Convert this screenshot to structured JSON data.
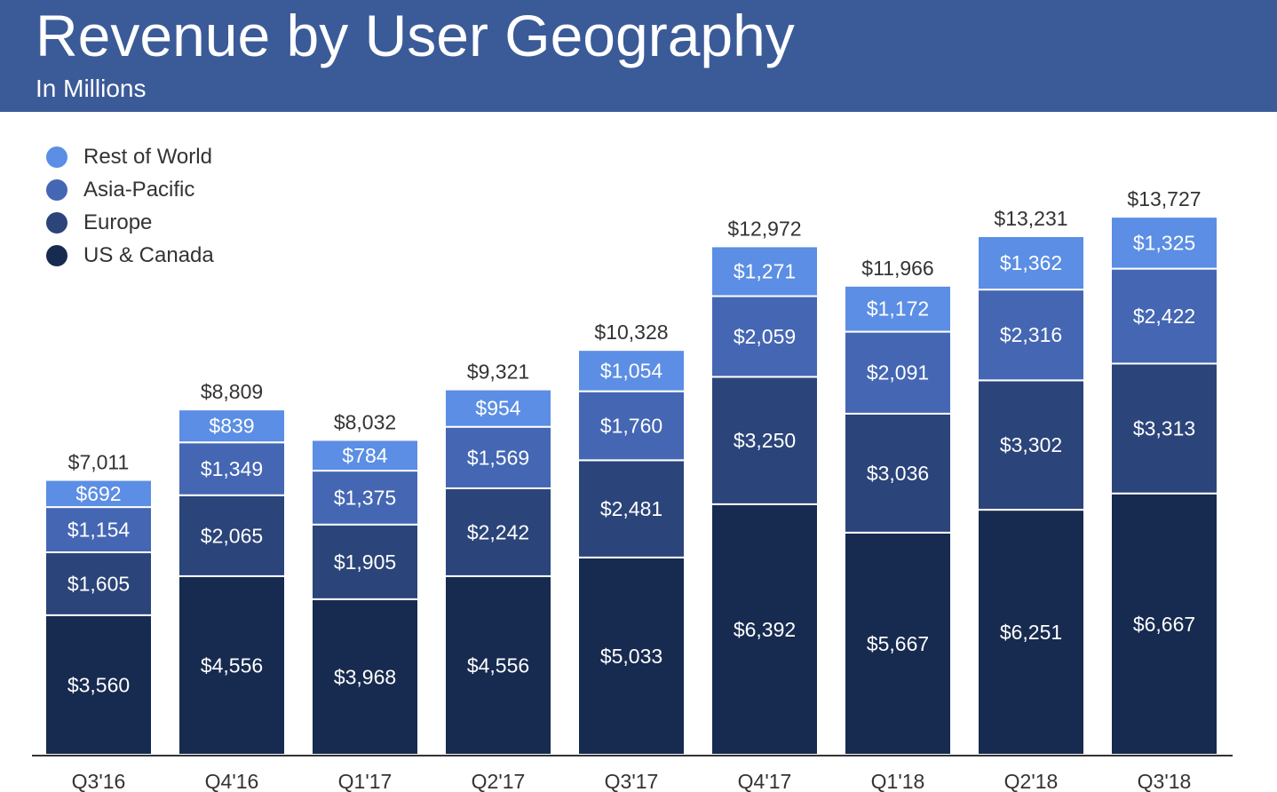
{
  "header": {
    "title": "Revenue by User Geography",
    "subtitle": "In Millions",
    "background_color": "#3b5a98"
  },
  "legend": {
    "items": [
      {
        "label": "Rest of World",
        "color": "#5b8ee4"
      },
      {
        "label": "Asia-Pacific",
        "color": "#4466b3"
      },
      {
        "label": "Europe",
        "color": "#2b4479"
      },
      {
        "label": "US & Canada",
        "color": "#172a4f"
      }
    ]
  },
  "chart_data": {
    "type": "bar",
    "stacked": true,
    "categories": [
      "Q3'16",
      "Q4'16",
      "Q1'17",
      "Q2'17",
      "Q3'17",
      "Q4'17",
      "Q1'18",
      "Q2'18",
      "Q3'18"
    ],
    "series": [
      {
        "name": "US & Canada",
        "color": "#172a4f",
        "values": [
          3560,
          4556,
          3968,
          4556,
          5033,
          6392,
          5667,
          6251,
          6667
        ],
        "labels": [
          "$3,560",
          "$4,556",
          "$3,968",
          "$4,556",
          "$5,033",
          "$6,392",
          "$5,667",
          "$6,251",
          "$6,667"
        ]
      },
      {
        "name": "Europe",
        "color": "#2b4479",
        "values": [
          1605,
          2065,
          1905,
          2242,
          2481,
          3250,
          3036,
          3302,
          3313
        ],
        "labels": [
          "$1,605",
          "$2,065",
          "$1,905",
          "$2,242",
          "$2,481",
          "$3,250",
          "$3,036",
          "$3,302",
          "$3,313"
        ]
      },
      {
        "name": "Asia-Pacific",
        "color": "#4466b3",
        "values": [
          1154,
          1349,
          1375,
          1569,
          1760,
          2059,
          2091,
          2316,
          2422
        ],
        "labels": [
          "$1,154",
          "$1,349",
          "$1,375",
          "$1,569",
          "$1,760",
          "$2,059",
          "$2,091",
          "$2,316",
          "$2,422"
        ]
      },
      {
        "name": "Rest of World",
        "color": "#5b8ee4",
        "values": [
          692,
          839,
          784,
          954,
          1054,
          1271,
          1172,
          1362,
          1325
        ],
        "labels": [
          "$692",
          "$839",
          "$784",
          "$954",
          "$1,054",
          "$1,271",
          "$1,172",
          "$1,362",
          "$1,325"
        ]
      }
    ],
    "totals": [
      7011,
      8809,
      8032,
      9321,
      10328,
      12972,
      11966,
      13231,
      13727
    ],
    "total_labels": [
      "$7,011",
      "$8,809",
      "$8,032",
      "$9,321",
      "$10,328",
      "$12,972",
      "$11,966",
      "$13,231",
      "$13,727"
    ],
    "ylim": [
      0,
      14500
    ],
    "grid": false,
    "legend_position": "top-left"
  }
}
